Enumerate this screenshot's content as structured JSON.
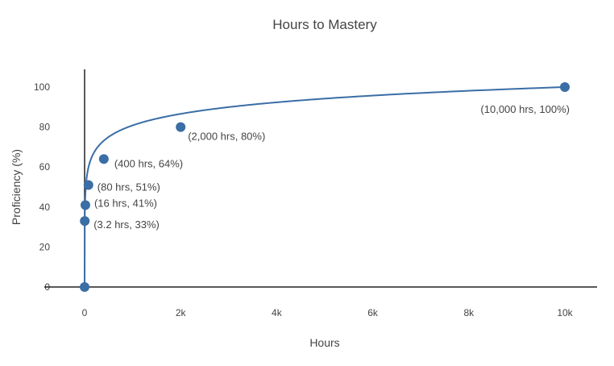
{
  "chart_data": {
    "type": "scatter",
    "title": "Hours to Mastery",
    "xlabel": "Hours",
    "ylabel": "Proficiency (%)",
    "xlim": [
      0,
      10500
    ],
    "ylim": [
      0,
      105
    ],
    "x_ticks": [
      0,
      2000,
      4000,
      6000,
      8000,
      10000
    ],
    "x_tick_labels": [
      "0",
      "2k",
      "4k",
      "6k",
      "8k",
      "10k"
    ],
    "y_ticks": [
      0,
      20,
      40,
      60,
      80,
      100
    ],
    "y_tick_labels": [
      "0",
      "20",
      "40",
      "60",
      "80",
      "100"
    ],
    "grid": false,
    "series": [
      {
        "color": "#3a6ea5",
        "x": [
          0,
          3.2,
          16,
          80,
          400,
          2000,
          10000
        ],
        "y": [
          0,
          33,
          41,
          51,
          64,
          80,
          100
        ],
        "labels": [
          "",
          "(3.2 hrs, 33%)",
          "(16 hrs, 41%)",
          "(80 hrs, 51%)",
          "(400 hrs, 64%)",
          "(2,000 hrs, 80%)",
          "(10,000 hrs, 100%)"
        ]
      }
    ]
  }
}
